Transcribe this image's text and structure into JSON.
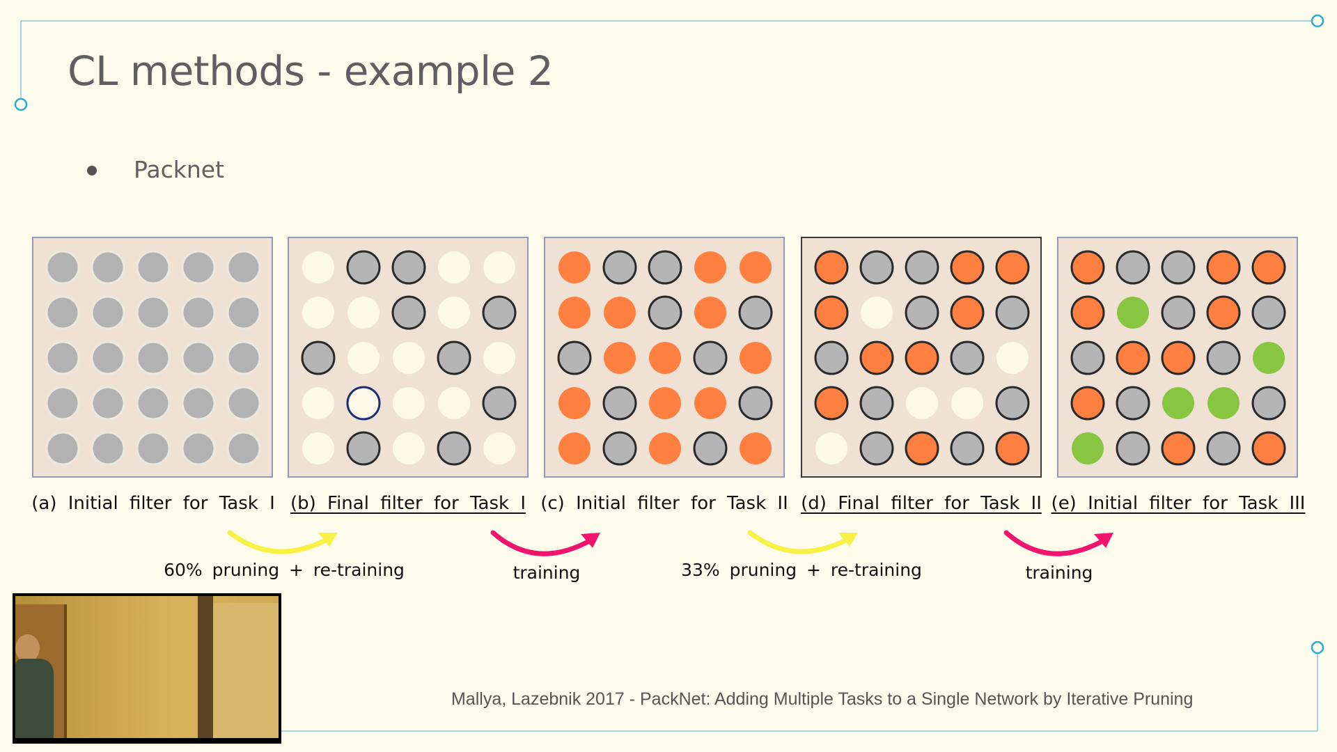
{
  "slide": {
    "title": "CL methods - example 2",
    "bullet": "Packnet",
    "citation": "Mallya, Lazebnik 2017 - PackNet: Adding Multiple Tasks to a Single Network by Iterative Pruning"
  },
  "colors": {
    "background": "#fdfbeb",
    "panel_bg": "#f0e1d5",
    "weight_grey": "#b2b2b2",
    "weight_pruned": "#fdf9e8",
    "task1": "#b5b5b5",
    "task2": "#fe8040",
    "task3": "#88c540",
    "arrow_pruning": "#f8f045",
    "arrow_training": "#f0146e",
    "accent": "#2aa8d6"
  },
  "panels": [
    {
      "caption": "(a) Initial filter for Task I",
      "underlined": false,
      "grid": [
        [
          "g",
          "g",
          "g",
          "g",
          "g"
        ],
        [
          "g",
          "g",
          "g",
          "g",
          "g"
        ],
        [
          "g",
          "g",
          "g",
          "g",
          "g"
        ],
        [
          "g",
          "g",
          "g",
          "g",
          "g"
        ],
        [
          "g",
          "g",
          "g",
          "g",
          "g"
        ]
      ]
    },
    {
      "caption": "(b) Final filter for Task I",
      "underlined": true,
      "grid": [
        [
          "w",
          "k",
          "k",
          "w",
          "w"
        ],
        [
          "w",
          "w",
          "k",
          "w",
          "k"
        ],
        [
          "k",
          "w",
          "w",
          "k",
          "w"
        ],
        [
          "w",
          "b",
          "w",
          "w",
          "k"
        ],
        [
          "w",
          "k",
          "w",
          "k",
          "w"
        ]
      ]
    },
    {
      "caption": "(c) Initial filter for Task II",
      "underlined": false,
      "grid": [
        [
          "o",
          "k",
          "k",
          "o",
          "o"
        ],
        [
          "o",
          "o",
          "k",
          "o",
          "k"
        ],
        [
          "k",
          "o",
          "o",
          "k",
          "o"
        ],
        [
          "o",
          "k",
          "o",
          "o",
          "k"
        ],
        [
          "o",
          "k",
          "o",
          "k",
          "o"
        ]
      ]
    },
    {
      "caption": "(d) Final filter for Task II",
      "underlined": true,
      "grid": [
        [
          "O",
          "k",
          "k",
          "O",
          "O"
        ],
        [
          "O",
          "w",
          "k",
          "O",
          "k"
        ],
        [
          "k",
          "O",
          "O",
          "k",
          "w"
        ],
        [
          "O",
          "k",
          "w",
          "w",
          "k"
        ],
        [
          "w",
          "k",
          "O",
          "k",
          "O"
        ]
      ]
    },
    {
      "caption": "(e) Initial filter for Task III",
      "underlined": true,
      "grid": [
        [
          "O",
          "k",
          "k",
          "O",
          "O"
        ],
        [
          "O",
          "n",
          "k",
          "O",
          "k"
        ],
        [
          "k",
          "O",
          "O",
          "k",
          "n"
        ],
        [
          "O",
          "k",
          "n",
          "n",
          "k"
        ],
        [
          "n",
          "k",
          "O",
          "k",
          "O"
        ]
      ]
    }
  ],
  "transitions": [
    {
      "label": "60% pruning + re-training",
      "kind": "pruning"
    },
    {
      "label": "training",
      "kind": "training"
    },
    {
      "label": "33% pruning + re-training",
      "kind": "pruning"
    },
    {
      "label": "training",
      "kind": "training"
    }
  ]
}
